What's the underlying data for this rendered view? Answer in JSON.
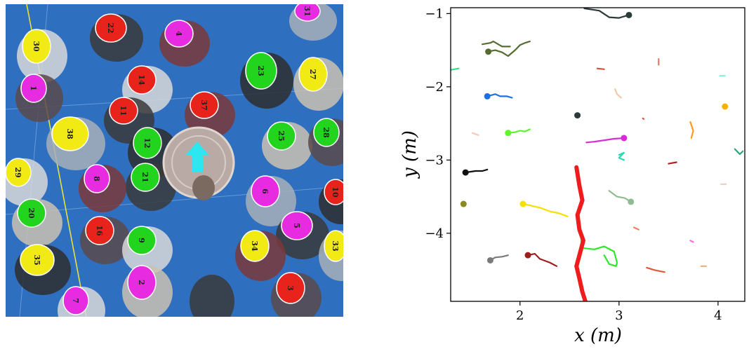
{
  "overhead_view": {
    "background_color": "#2f6fc0",
    "marker_colors": {
      "red": "#e8231c",
      "green": "#22d41e",
      "yellow": "#f2ea14",
      "magenta": "#e62be0"
    },
    "robot_arrow_color": "#2ee6f0",
    "guide_line_color": "#e8e03a",
    "pedestrians": [
      {
        "id": "30",
        "color": "yellow"
      },
      {
        "id": "22",
        "color": "red"
      },
      {
        "id": "4",
        "color": "magenta"
      },
      {
        "id": "31",
        "color": "magenta"
      },
      {
        "id": "23",
        "color": "green"
      },
      {
        "id": "27",
        "color": "yellow"
      },
      {
        "id": "1",
        "color": "magenta"
      },
      {
        "id": "14",
        "color": "red"
      },
      {
        "id": "11",
        "color": "red"
      },
      {
        "id": "37",
        "color": "red"
      },
      {
        "id": "38",
        "color": "yellow"
      },
      {
        "id": "12",
        "color": "green"
      },
      {
        "id": "25",
        "color": "green"
      },
      {
        "id": "28",
        "color": "green"
      },
      {
        "id": "29",
        "color": "yellow"
      },
      {
        "id": "21",
        "color": "green"
      },
      {
        "id": "8",
        "color": "magenta"
      },
      {
        "id": "6",
        "color": "magenta"
      },
      {
        "id": "10",
        "color": "red"
      },
      {
        "id": "20",
        "color": "green"
      },
      {
        "id": "16",
        "color": "red"
      },
      {
        "id": "9",
        "color": "green"
      },
      {
        "id": "5",
        "color": "magenta"
      },
      {
        "id": "34",
        "color": "yellow"
      },
      {
        "id": "33",
        "color": "yellow"
      },
      {
        "id": "35",
        "color": "yellow"
      },
      {
        "id": "2",
        "color": "magenta"
      },
      {
        "id": "3",
        "color": "red"
      },
      {
        "id": "7",
        "color": "magenta"
      }
    ]
  },
  "chart_data": {
    "type": "line",
    "xlabel": "x (m)",
    "ylabel": "y (m)",
    "xlim": [
      1.3,
      4.27
    ],
    "ylim": [
      -4.93,
      -0.92
    ],
    "xticks": [
      2,
      3,
      4
    ],
    "yticks": [
      -1,
      -2,
      -3,
      -4
    ],
    "xtick_labels": [
      "2",
      "3",
      "4"
    ],
    "ytick_labels": [
      "−1",
      "−2",
      "−3",
      "−4"
    ],
    "grid": false,
    "robot_path": {
      "color": "#ee1c1c",
      "points": [
        [
          2.57,
          -3.1
        ],
        [
          2.6,
          -3.35
        ],
        [
          2.63,
          -3.55
        ],
        [
          2.58,
          -3.75
        ],
        [
          2.6,
          -3.95
        ],
        [
          2.64,
          -4.1
        ],
        [
          2.6,
          -4.3
        ],
        [
          2.57,
          -4.45
        ],
        [
          2.6,
          -4.62
        ],
        [
          2.63,
          -4.8
        ],
        [
          2.66,
          -4.93
        ]
      ]
    },
    "series": [
      {
        "color": "#2b3a3a",
        "points": [
          [
            2.65,
            -0.93
          ],
          [
            2.8,
            -0.96
          ],
          [
            2.9,
            -1.05
          ],
          [
            3.0,
            -1.06
          ],
          [
            3.1,
            -1.02
          ]
        ],
        "marker_end": true
      },
      {
        "color": "#556b2f",
        "points": [
          [
            1.62,
            -1.42
          ],
          [
            1.7,
            -1.4
          ],
          [
            1.73,
            -1.38
          ],
          [
            1.82,
            -1.45
          ],
          [
            1.9,
            -1.45
          ]
        ]
      },
      {
        "color": "#556b2f",
        "points": [
          [
            1.68,
            -1.52
          ],
          [
            1.75,
            -1.5
          ],
          [
            1.82,
            -1.53
          ],
          [
            1.88,
            -1.58
          ],
          [
            1.95,
            -1.5
          ],
          [
            2.0,
            -1.43
          ],
          [
            2.05,
            -1.4
          ],
          [
            2.1,
            -1.38
          ]
        ],
        "marker_start": true
      },
      {
        "color": "#33e08a",
        "points": [
          [
            1.3,
            -1.77
          ],
          [
            1.38,
            -1.75
          ]
        ]
      },
      {
        "color": "#d94d3b",
        "points": [
          [
            2.78,
            -1.75
          ],
          [
            2.85,
            -1.76
          ]
        ]
      },
      {
        "color": "#e07a6a",
        "points": [
          [
            3.4,
            -1.62
          ],
          [
            3.4,
            -1.7
          ]
        ]
      },
      {
        "color": "#7ff0d0",
        "points": [
          [
            4.02,
            -1.85
          ],
          [
            4.07,
            -1.85
          ]
        ]
      },
      {
        "color": "#1e6fe0",
        "points": [
          [
            1.67,
            -2.13
          ],
          [
            1.75,
            -2.1
          ],
          [
            1.8,
            -2.13
          ],
          [
            1.87,
            -2.13
          ],
          [
            1.92,
            -2.15
          ]
        ],
        "marker_start": true
      },
      {
        "color": "#f5c9a8",
        "points": [
          [
            2.96,
            -2.03
          ],
          [
            2.98,
            -2.1
          ],
          [
            3.02,
            -2.15
          ]
        ]
      },
      {
        "color": "#f5b300",
        "points": [
          [
            4.06,
            -2.27
          ],
          [
            4.07,
            -2.27
          ]
        ],
        "marker_end": true
      },
      {
        "color": "#2b3a3a",
        "points": [
          [
            2.57,
            -2.39
          ],
          [
            2.58,
            -2.39
          ]
        ],
        "marker_end": true
      },
      {
        "color": "#e05a4a",
        "points": [
          [
            3.24,
            -2.43
          ],
          [
            3.25,
            -2.44
          ]
        ]
      },
      {
        "color": "#ff9a1e",
        "points": [
          [
            3.72,
            -2.48
          ],
          [
            3.75,
            -2.6
          ],
          [
            3.73,
            -2.7
          ]
        ]
      },
      {
        "color": "#f5c9c0",
        "points": [
          [
            1.52,
            -2.63
          ],
          [
            1.58,
            -2.66
          ]
        ]
      },
      {
        "color": "#5ef52a",
        "points": [
          [
            1.88,
            -2.63
          ],
          [
            1.95,
            -2.62
          ],
          [
            2.0,
            -2.6
          ],
          [
            2.05,
            -2.61
          ],
          [
            2.1,
            -2.58
          ]
        ],
        "marker_start": true
      },
      {
        "color": "#d82cd8",
        "points": [
          [
            2.67,
            -2.76
          ],
          [
            2.75,
            -2.75
          ],
          [
            2.85,
            -2.73
          ],
          [
            2.95,
            -2.71
          ],
          [
            3.05,
            -2.7
          ]
        ],
        "marker_end": true
      },
      {
        "color": "#2adbb0",
        "points": [
          [
            3.0,
            -2.93
          ],
          [
            3.05,
            -2.9
          ],
          [
            3.0,
            -2.97
          ],
          [
            3.05,
            -3.0
          ]
        ]
      },
      {
        "color": "#b22222",
        "points": [
          [
            3.5,
            -3.05
          ],
          [
            3.58,
            -3.03
          ]
        ]
      },
      {
        "color": "#2aa878",
        "points": [
          [
            4.17,
            -2.85
          ],
          [
            4.22,
            -2.92
          ],
          [
            4.25,
            -2.88
          ]
        ]
      },
      {
        "color": "#111111",
        "points": [
          [
            1.45,
            -3.17
          ],
          [
            1.55,
            -3.15
          ],
          [
            1.62,
            -3.15
          ],
          [
            1.67,
            -3.13
          ]
        ],
        "marker_start": true
      },
      {
        "color": "#f5c9c0",
        "points": [
          [
            4.03,
            -3.33
          ],
          [
            4.08,
            -3.33
          ]
        ]
      },
      {
        "color": "#8fbc8f",
        "points": [
          [
            2.9,
            -3.42
          ],
          [
            2.98,
            -3.5
          ],
          [
            3.06,
            -3.52
          ],
          [
            3.12,
            -3.57
          ]
        ],
        "marker_end": true
      },
      {
        "color": "#8a8a1e",
        "points": [
          [
            1.42,
            -3.6
          ],
          [
            1.43,
            -3.6
          ]
        ],
        "marker_end": true
      },
      {
        "color": "#f5e000",
        "points": [
          [
            2.03,
            -3.6
          ],
          [
            2.1,
            -3.62
          ],
          [
            2.2,
            -3.65
          ],
          [
            2.3,
            -3.7
          ],
          [
            2.4,
            -3.73
          ],
          [
            2.48,
            -3.77
          ]
        ],
        "marker_start": true
      },
      {
        "color": "#f08060",
        "points": [
          [
            3.15,
            -3.92
          ],
          [
            3.2,
            -3.95
          ]
        ]
      },
      {
        "color": "#ff6bdc",
        "points": [
          [
            3.72,
            -4.1
          ],
          [
            3.75,
            -4.12
          ]
        ]
      },
      {
        "color": "#2ee62e",
        "points": [
          [
            2.62,
            -4.03
          ],
          [
            2.62,
            -4.2
          ],
          [
            2.75,
            -4.22
          ],
          [
            2.85,
            -4.18
          ],
          [
            2.95,
            -4.25
          ],
          [
            2.98,
            -4.4
          ],
          [
            2.97,
            -4.45
          ],
          [
            2.9,
            -4.42
          ],
          [
            2.85,
            -4.3
          ]
        ]
      },
      {
        "color": "#7a7a7a",
        "points": [
          [
            1.7,
            -4.37
          ],
          [
            1.75,
            -4.33
          ],
          [
            1.82,
            -4.32
          ],
          [
            1.88,
            -4.3
          ]
        ],
        "marker_start": true
      },
      {
        "color": "#9c1e1e",
        "points": [
          [
            2.08,
            -4.3
          ],
          [
            2.15,
            -4.28
          ],
          [
            2.2,
            -4.35
          ],
          [
            2.3,
            -4.4
          ],
          [
            2.37,
            -4.45
          ]
        ],
        "marker_start": true
      },
      {
        "color": "#e05a3a",
        "points": [
          [
            3.28,
            -4.47
          ],
          [
            3.35,
            -4.5
          ],
          [
            3.42,
            -4.52
          ],
          [
            3.46,
            -4.53
          ]
        ]
      },
      {
        "color": "#e8b07a",
        "points": [
          [
            3.83,
            -4.45
          ],
          [
            3.88,
            -4.45
          ]
        ]
      }
    ]
  }
}
